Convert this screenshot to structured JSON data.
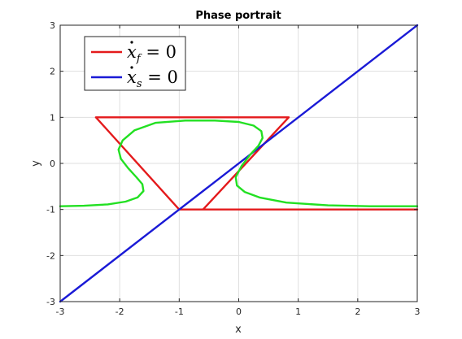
{
  "chart_data": {
    "type": "line",
    "title": "Phase portrait",
    "xlabel": "x",
    "ylabel": "y",
    "xlim": [
      -3,
      3
    ],
    "ylim": [
      -3,
      3
    ],
    "xticks": [
      "-3",
      "-2",
      "-1",
      "0",
      "1",
      "2",
      "3"
    ],
    "yticks": [
      "-3",
      "-2",
      "-1",
      "0",
      "1",
      "2",
      "3"
    ],
    "grid": true,
    "legend_position": "top-left",
    "legend": [
      {
        "symbol": "x",
        "subscript": "f",
        "rhs": "= 0",
        "color": "#e41a1c"
      },
      {
        "symbol": "x",
        "subscript": "s",
        "rhs": "= 0",
        "color": "#1a1ad6"
      }
    ],
    "series": [
      {
        "color": "#e41a1c",
        "x": [
          3.0,
          -1.0,
          -2.4,
          0.84,
          -0.6,
          3.0
        ],
        "y": [
          -1.0,
          -1.0,
          1.0,
          1.0,
          -1.0,
          -1.0
        ]
      },
      {
        "color": "#1a1ad6",
        "x": [
          -3.0,
          3.0
        ],
        "y": [
          -3.0,
          3.0
        ]
      },
      {
        "color": "#22e022",
        "x": [
          -3.0,
          -2.6,
          -2.2,
          -1.9,
          -1.7,
          -1.6,
          -1.62,
          -1.72,
          -1.86,
          -1.98,
          -2.02,
          -1.95,
          -1.75,
          -1.4,
          -0.9,
          -0.4,
          0.0,
          0.25,
          0.38,
          0.4,
          0.33,
          0.2,
          0.05,
          -0.05,
          -0.03,
          0.1,
          0.35,
          0.8,
          1.5,
          2.2,
          3.0
        ],
        "y": [
          -0.93,
          -0.92,
          -0.89,
          -0.83,
          -0.74,
          -0.6,
          -0.45,
          -0.3,
          -0.1,
          0.1,
          0.3,
          0.5,
          0.72,
          0.88,
          0.93,
          0.93,
          0.9,
          0.82,
          0.7,
          0.55,
          0.38,
          0.2,
          -0.05,
          -0.3,
          -0.48,
          -0.62,
          -0.74,
          -0.85,
          -0.91,
          -0.93,
          -0.93
        ]
      }
    ]
  }
}
